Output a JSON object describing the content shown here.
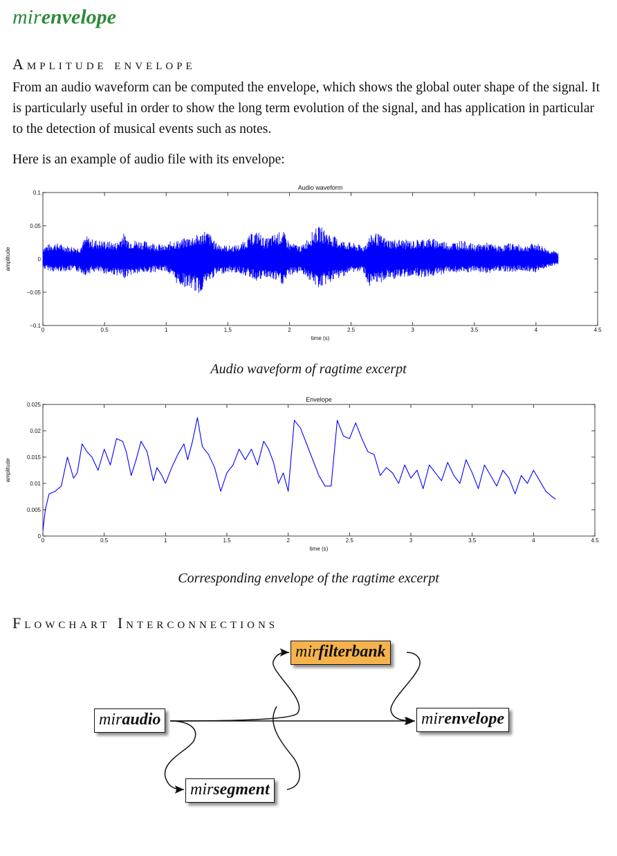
{
  "title": {
    "prefix": "mir",
    "suffix": "envelope"
  },
  "section1": {
    "heading": "Amplitude envelope"
  },
  "paragraph1": "From an audio waveform can be computed the envelope, which shows the global outer shape of the signal. It is particularly useful in order to show the long term evolution of the signal, and has application in particular to the detection of musical events such as notes.",
  "paragraph2": "Here is an example of audio file with its envelope:",
  "captions": {
    "waveform": "Audio waveform of ragtime excerpt",
    "envelope": "Corresponding envelope of the ragtime excerpt"
  },
  "section2": {
    "heading": "Flowchart Interconnections"
  },
  "flowchart": {
    "nodes": [
      {
        "id": "miraudio",
        "prefix": "mir",
        "suffix": "audio"
      },
      {
        "id": "mirfilterbank",
        "prefix": "mir",
        "suffix": "filterbank"
      },
      {
        "id": "mirsegment",
        "prefix": "mir",
        "suffix": "segment"
      },
      {
        "id": "mirenvelope",
        "prefix": "mir",
        "suffix": "envelope"
      }
    ],
    "edges": [
      [
        "miraudio",
        "mirenvelope"
      ],
      [
        "miraudio",
        "mirfilterbank"
      ],
      [
        "miraudio",
        "mirsegment"
      ],
      [
        "mirsegment",
        "mirfilterbank"
      ],
      [
        "mirfilterbank",
        "mirenvelope"
      ]
    ]
  },
  "colors": {
    "title": "#2f8a3c",
    "plot_line": "#0000ff",
    "filterbank_highlight": "#f6b34d"
  },
  "chart_data": [
    {
      "type": "line",
      "title": "Audio waveform",
      "xlabel": "time (s)",
      "ylabel": "amplitude",
      "xlim": [
        0,
        4.5
      ],
      "ylim": [
        -0.1,
        0.1
      ],
      "xticks": [
        "0",
        "0.5",
        "1",
        "1.5",
        "2",
        "2.5",
        "3",
        "3.5",
        "4",
        "4.5"
      ],
      "yticks": [
        "−0.1",
        "−0.05",
        "0",
        "0.05",
        "0.1"
      ],
      "series": [
        {
          "x": [
            0,
            0.1,
            0.2,
            0.3,
            0.35,
            0.4,
            0.5,
            0.6,
            0.65,
            0.7,
            0.8,
            0.9,
            1.0,
            1.05,
            1.1,
            1.2,
            1.28,
            1.3,
            1.35,
            1.4,
            1.5,
            1.6,
            1.7,
            1.75,
            1.8,
            1.9,
            1.95,
            2.0,
            2.1,
            2.2,
            2.25,
            2.3,
            2.4,
            2.5,
            2.6,
            2.65,
            2.7,
            2.8,
            2.9,
            3.0,
            3.1,
            3.2,
            3.3,
            3.4,
            3.5,
            3.6,
            3.7,
            3.8,
            3.9,
            4.0,
            4.1,
            4.18
          ],
          "upper": [
            0.02,
            0.025,
            0.02,
            0.018,
            0.035,
            0.03,
            0.028,
            0.025,
            0.04,
            0.03,
            0.028,
            0.025,
            0.02,
            0.03,
            0.028,
            0.035,
            0.038,
            0.045,
            0.04,
            0.025,
            0.02,
            0.022,
            0.04,
            0.042,
            0.03,
            0.04,
            0.042,
            0.025,
            0.02,
            0.045,
            0.05,
            0.042,
            0.03,
            0.025,
            0.02,
            0.035,
            0.04,
            0.03,
            0.03,
            0.028,
            0.032,
            0.03,
            0.025,
            0.028,
            0.022,
            0.025,
            0.02,
            0.025,
            0.02,
            0.025,
            0.015,
            0.01
          ],
          "lower": [
            -0.015,
            -0.02,
            -0.018,
            -0.02,
            -0.025,
            -0.02,
            -0.022,
            -0.025,
            -0.03,
            -0.025,
            -0.022,
            -0.02,
            -0.018,
            -0.03,
            -0.04,
            -0.045,
            -0.055,
            -0.04,
            -0.035,
            -0.025,
            -0.02,
            -0.022,
            -0.03,
            -0.035,
            -0.028,
            -0.035,
            -0.04,
            -0.025,
            -0.02,
            -0.04,
            -0.045,
            -0.038,
            -0.03,
            -0.02,
            -0.02,
            -0.045,
            -0.04,
            -0.03,
            -0.03,
            -0.025,
            -0.028,
            -0.025,
            -0.02,
            -0.022,
            -0.02,
            -0.022,
            -0.018,
            -0.02,
            -0.018,
            -0.02,
            -0.012,
            -0.008
          ]
        }
      ]
    },
    {
      "type": "line",
      "title": "Envelope",
      "xlabel": "time (s)",
      "ylabel": "amplitude",
      "xlim": [
        0,
        4.5
      ],
      "ylim": [
        0,
        0.025
      ],
      "xticks": [
        "0",
        "0.5",
        "1",
        "1.5",
        "2",
        "2.5",
        "3",
        "3.5",
        "4",
        "4.5"
      ],
      "yticks": [
        "0",
        "0.005",
        "0.01",
        "0.015",
        "0.02",
        "0.025"
      ],
      "series": [
        {
          "x": [
            0,
            0.02,
            0.05,
            0.1,
            0.15,
            0.2,
            0.25,
            0.28,
            0.32,
            0.36,
            0.4,
            0.45,
            0.5,
            0.55,
            0.6,
            0.65,
            0.68,
            0.72,
            0.76,
            0.8,
            0.85,
            0.9,
            0.93,
            0.97,
            1.0,
            1.05,
            1.1,
            1.15,
            1.18,
            1.22,
            1.26,
            1.3,
            1.35,
            1.4,
            1.45,
            1.5,
            1.55,
            1.6,
            1.65,
            1.7,
            1.75,
            1.8,
            1.84,
            1.88,
            1.92,
            1.96,
            2.0,
            2.05,
            2.1,
            2.15,
            2.2,
            2.25,
            2.3,
            2.35,
            2.4,
            2.45,
            2.5,
            2.55,
            2.6,
            2.65,
            2.7,
            2.75,
            2.8,
            2.85,
            2.9,
            2.95,
            3.0,
            3.05,
            3.1,
            3.15,
            3.2,
            3.25,
            3.3,
            3.35,
            3.4,
            3.45,
            3.5,
            3.55,
            3.6,
            3.65,
            3.7,
            3.75,
            3.8,
            3.85,
            3.9,
            3.95,
            4.0,
            4.05,
            4.1,
            4.15,
            4.18
          ],
          "y": [
            0.001,
            0.005,
            0.008,
            0.0085,
            0.0095,
            0.015,
            0.011,
            0.012,
            0.0175,
            0.016,
            0.015,
            0.0125,
            0.0165,
            0.0135,
            0.0185,
            0.018,
            0.016,
            0.0115,
            0.0145,
            0.018,
            0.016,
            0.0105,
            0.013,
            0.0115,
            0.01,
            0.013,
            0.0155,
            0.0175,
            0.0145,
            0.018,
            0.0225,
            0.017,
            0.0155,
            0.013,
            0.0085,
            0.012,
            0.0135,
            0.0165,
            0.0145,
            0.0165,
            0.0135,
            0.018,
            0.0165,
            0.014,
            0.01,
            0.012,
            0.0085,
            0.022,
            0.0205,
            0.0175,
            0.0145,
            0.0115,
            0.0095,
            0.0095,
            0.022,
            0.019,
            0.0185,
            0.0215,
            0.0185,
            0.016,
            0.0155,
            0.0115,
            0.013,
            0.012,
            0.01,
            0.0135,
            0.011,
            0.0125,
            0.009,
            0.0135,
            0.012,
            0.0105,
            0.014,
            0.0115,
            0.01,
            0.0145,
            0.012,
            0.009,
            0.0135,
            0.0115,
            0.0095,
            0.0125,
            0.011,
            0.008,
            0.0115,
            0.01,
            0.0125,
            0.0105,
            0.0085,
            0.0075,
            0.007
          ]
        }
      ]
    }
  ]
}
